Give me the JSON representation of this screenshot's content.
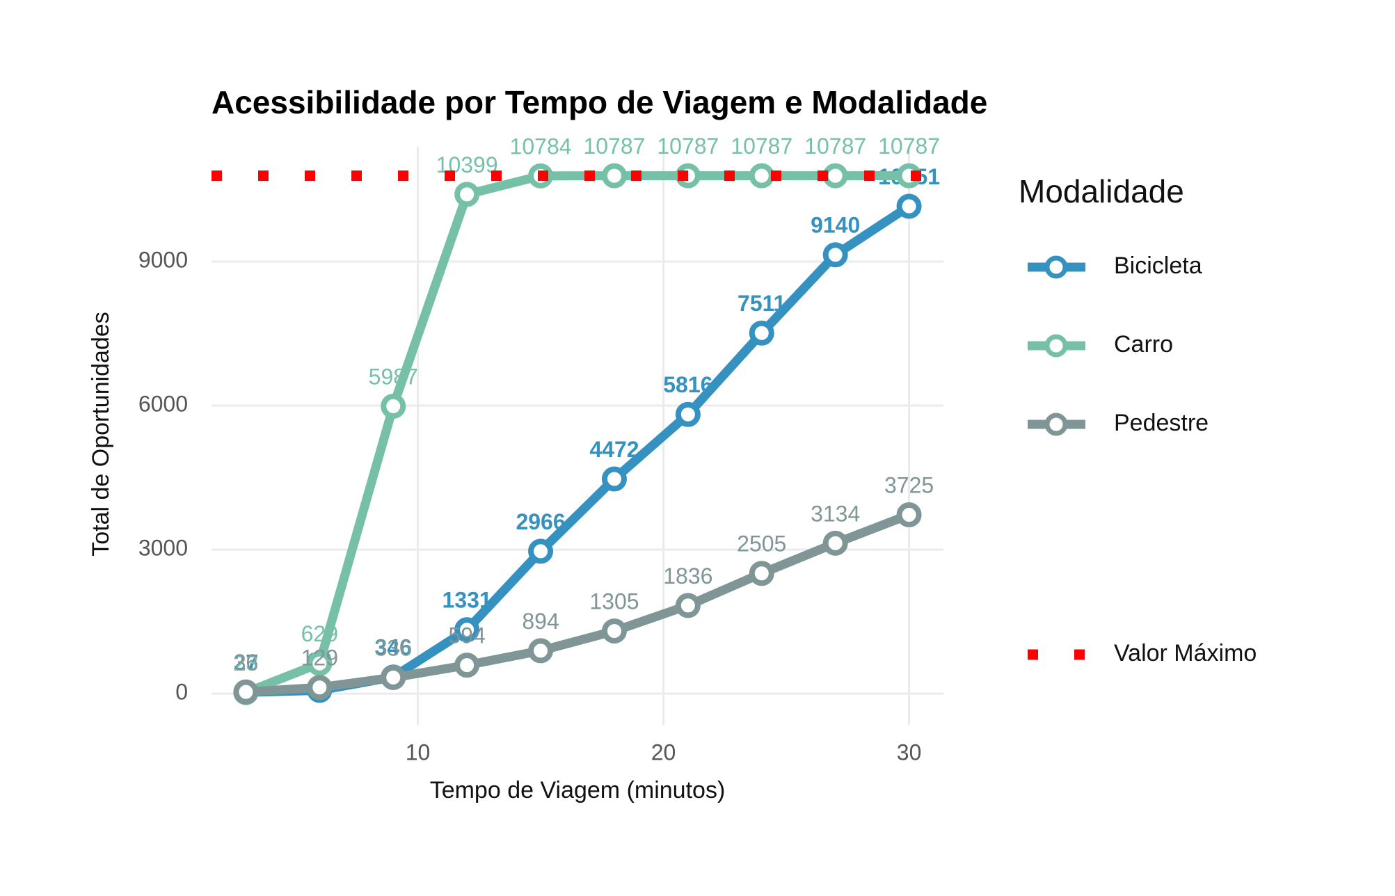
{
  "chart_data": {
    "type": "line",
    "title": "Acessibilidade por Tempo de Viagem e Modalidade",
    "x_label": "Tempo de Viagem (minutos)",
    "y_label": "Total de Oportunidades",
    "legend_title": "Modalidade",
    "x": [
      3,
      6,
      9,
      12,
      15,
      18,
      21,
      24,
      27,
      30
    ],
    "series": [
      {
        "name": "Bicicleta",
        "color": "#3592c0",
        "values": [
          27,
          69,
          346,
          1331,
          2966,
          4472,
          5816,
          7511,
          9140,
          10151
        ]
      },
      {
        "name": "Carro",
        "color": "#77c0a8",
        "values": [
          23,
          629,
          5987,
          10399,
          10784,
          10787,
          10787,
          10787,
          10787,
          10787
        ]
      },
      {
        "name": "Pedestre",
        "color": "#7f9596",
        "values": [
          36,
          129,
          336,
          594,
          894,
          1305,
          1836,
          2505,
          3134,
          3725
        ]
      }
    ],
    "hline": {
      "name": "Valor Máximo",
      "value": 10787,
      "color": "#ff0000"
    },
    "xlim": [
      1.6,
      31.4
    ],
    "ylim": [
      -650,
      11390
    ],
    "xticks": [
      10,
      20,
      30
    ],
    "yticks": [
      0,
      3000,
      6000,
      9000
    ],
    "grid": true,
    "legend": "right"
  }
}
